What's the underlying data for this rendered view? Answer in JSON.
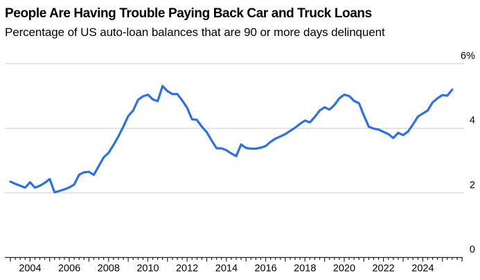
{
  "header": {
    "title": "People Are Having Trouble Paying Back Car and Truck Loans",
    "subtitle": "Percentage of US auto-loan balances that are 90 or more days delinquent"
  },
  "chart_data": {
    "type": "line",
    "title": "People Are Having Trouble Paying Back Car and Truck Loans",
    "subtitle": "Percentage of US auto-loan balances that are 90 or more days delinquent",
    "x_axis": {
      "start": 2003,
      "end": 2026,
      "tick_interval": 0.25,
      "year_tick_interval": 1,
      "label_years": [
        2004,
        2006,
        2008,
        2010,
        2012,
        2014,
        2016,
        2018,
        2020,
        2022,
        2024
      ]
    },
    "y_axis": {
      "min": 0,
      "max": 6,
      "unit": "%",
      "ticks": [
        {
          "value": 6,
          "label": "6%"
        },
        {
          "value": 4,
          "label": "4"
        },
        {
          "value": 2,
          "label": "2"
        },
        {
          "value": 0,
          "label": "0"
        }
      ]
    },
    "grid": "horizontal",
    "legend": "none",
    "series": [
      {
        "name": "US auto-loan balances 90 or more days delinquent (%)",
        "start_year": 2003,
        "start_quarter": 1,
        "frequency": "quarterly",
        "values": [
          2.35,
          2.28,
          2.22,
          2.16,
          2.33,
          2.16,
          2.22,
          2.31,
          2.43,
          2.02,
          2.06,
          2.11,
          2.17,
          2.26,
          2.56,
          2.64,
          2.65,
          2.56,
          2.83,
          3.1,
          3.24,
          3.48,
          3.75,
          4.05,
          4.38,
          4.55,
          4.88,
          4.99,
          5.04,
          4.9,
          4.84,
          5.31,
          5.15,
          5.06,
          5.06,
          4.86,
          4.64,
          4.28,
          4.26,
          4.05,
          3.88,
          3.62,
          3.38,
          3.38,
          3.32,
          3.22,
          3.14,
          3.5,
          3.39,
          3.37,
          3.37,
          3.4,
          3.45,
          3.58,
          3.68,
          3.75,
          3.82,
          3.92,
          4.02,
          4.14,
          4.24,
          4.18,
          4.35,
          4.55,
          4.65,
          4.58,
          4.72,
          4.93,
          5.04,
          5.0,
          4.85,
          4.78,
          4.4,
          4.05,
          3.99,
          3.96,
          3.89,
          3.82,
          3.7,
          3.86,
          3.79,
          3.9,
          4.12,
          4.36,
          4.46,
          4.55,
          4.8,
          4.93,
          5.03,
          5.01,
          5.2
        ]
      }
    ],
    "colors": {
      "line": "#2B70E8",
      "grid": "#CCCCCC",
      "axis": "#222222",
      "text": "#000000",
      "background": "#FFFFFF"
    }
  }
}
